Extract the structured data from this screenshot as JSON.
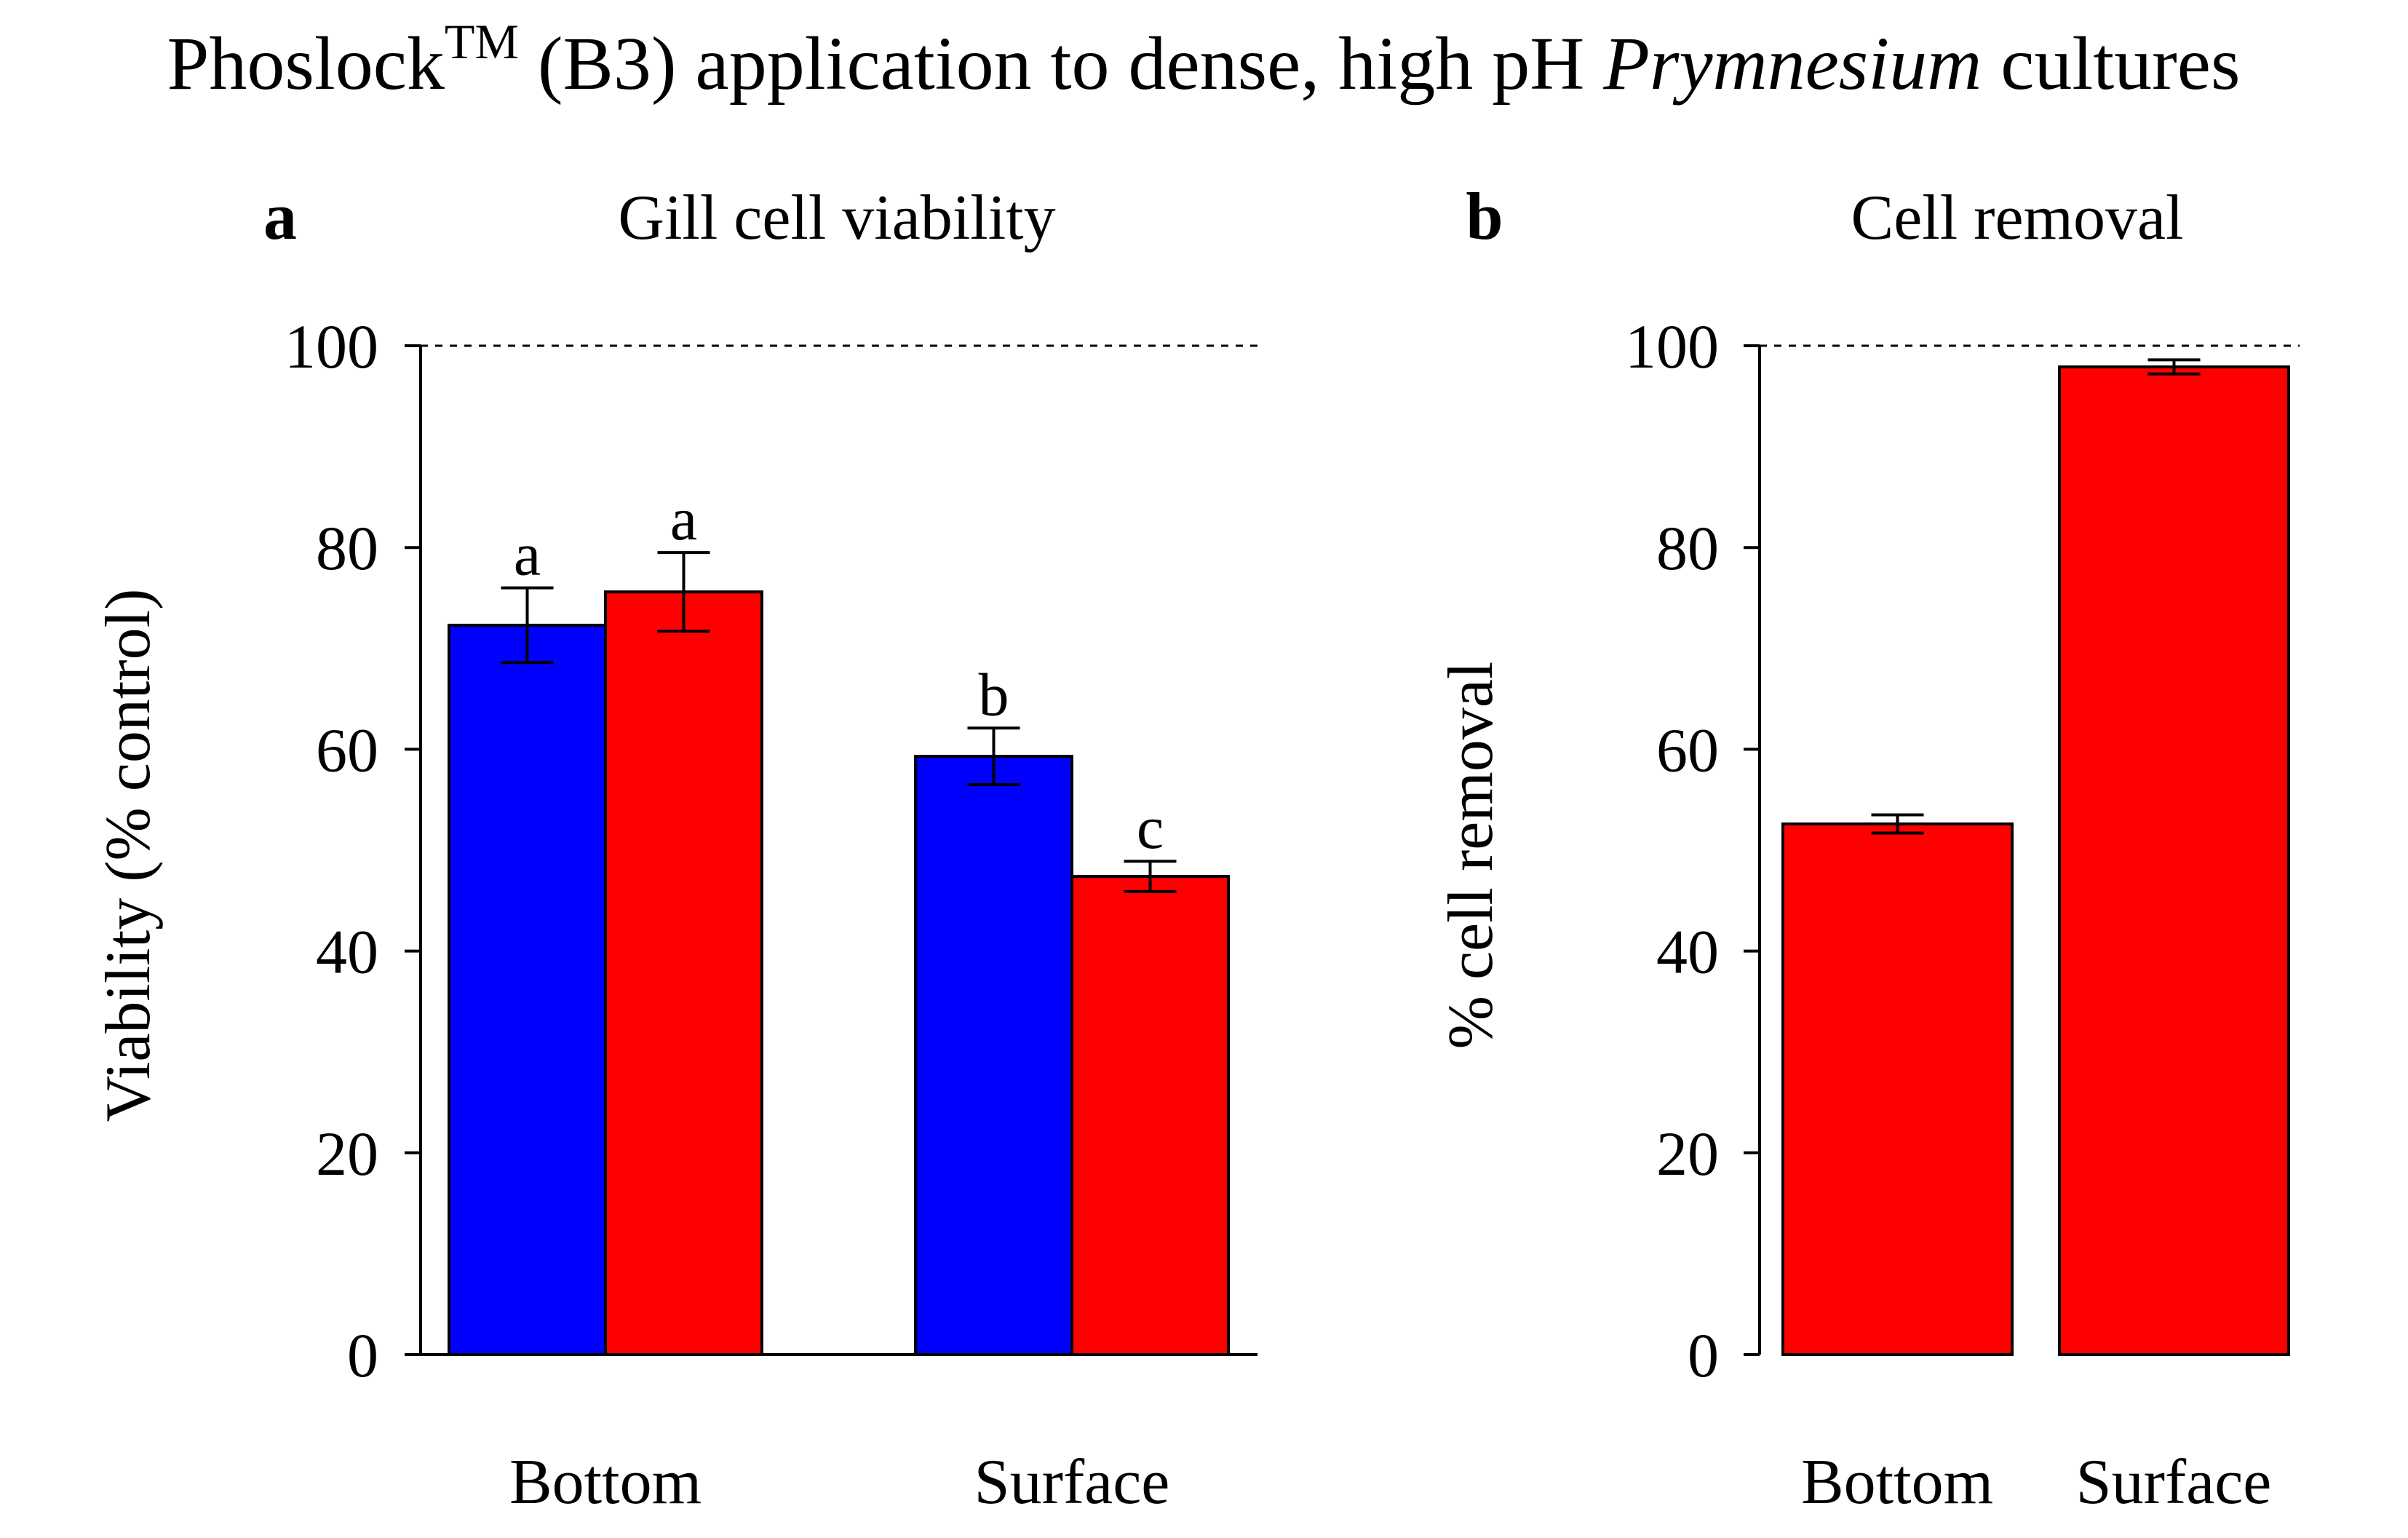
{
  "figure": {
    "title_prefix": "Phoslock",
    "title_superscript": "TM",
    "title_middle": " (B3) application to dense, high pH ",
    "title_italic": "Prymnesium",
    "title_suffix": " cultures"
  },
  "chart_data": [
    {
      "panel_label": "a",
      "type": "bar",
      "title": "Gill cell viability",
      "xlabel": "",
      "ylabel": "Viability (% control)",
      "ylim": [
        0,
        100
      ],
      "yticks": [
        "0",
        "20",
        "40",
        "60",
        "80",
        "100"
      ],
      "reference_line": 100,
      "grid": false,
      "legend": "none",
      "categories": [
        "Bottom",
        "Surface"
      ],
      "series": [
        {
          "color": "#0000ff",
          "values": [
            72.3,
            59.3
          ],
          "errors": [
            3.7,
            2.8
          ],
          "letters": [
            "a",
            "b"
          ]
        },
        {
          "color": "#ff0000",
          "values": [
            75.6,
            47.4
          ],
          "errors": [
            3.9,
            1.5
          ],
          "letters": [
            "a",
            "c"
          ]
        }
      ]
    },
    {
      "panel_label": "b",
      "type": "bar",
      "title": "Cell removal",
      "xlabel": "",
      "ylabel": "% cell removal",
      "ylim": [
        0,
        100
      ],
      "yticks": [
        "0",
        "20",
        "40",
        "60",
        "80",
        "100"
      ],
      "reference_line": 100,
      "grid": false,
      "legend": "none",
      "categories": [
        "Bottom",
        "Surface"
      ],
      "series": [
        {
          "color": "#ff0000",
          "values": [
            52.6,
            97.9
          ],
          "errors": [
            0.9,
            0.7
          ],
          "letters": [
            "",
            ""
          ]
        }
      ]
    }
  ]
}
